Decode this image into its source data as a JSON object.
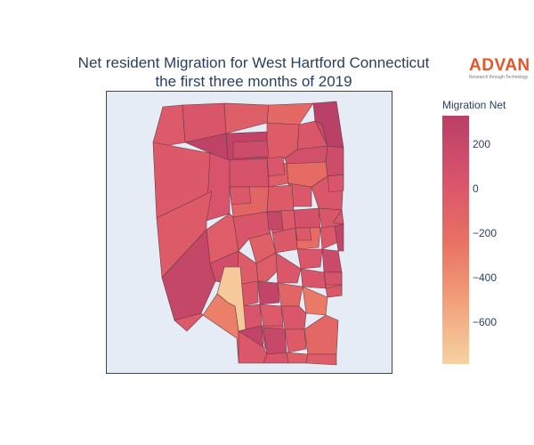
{
  "chart": {
    "title_line1": "Net resident Migration for West Hartford Connecticut",
    "title_line2": "the first three months of 2019"
  },
  "logo": {
    "name": "ADVAN",
    "tagline": "Research through Technology",
    "color": "#e8542a"
  },
  "colorbar": {
    "title": "Migration Net",
    "min": -790,
    "max": 330,
    "ticks": [
      {
        "value": 200,
        "label": "200"
      },
      {
        "value": 0,
        "label": "0"
      },
      {
        "value": -200,
        "label": "−200"
      },
      {
        "value": -400,
        "label": "−400"
      },
      {
        "value": -600,
        "label": "−600"
      }
    ],
    "colors": [
      "#f6d2a0",
      "#f2a07a",
      "#e87063",
      "#d8536b",
      "#b83f66"
    ]
  },
  "chart_data": {
    "type": "choropleth",
    "region": "West Hartford Connecticut",
    "value_label": "Migration Net",
    "range": [
      -790,
      330
    ],
    "tracts": [
      {
        "id": "t01",
        "value": -20
      },
      {
        "id": "t02",
        "value": 30
      },
      {
        "id": "t03",
        "value": -60
      },
      {
        "id": "t04",
        "value": -160
      },
      {
        "id": "t05",
        "value": 320
      },
      {
        "id": "t06",
        "value": 10
      },
      {
        "id": "t07",
        "value": 260
      },
      {
        "id": "t08",
        "value": -40
      },
      {
        "id": "t09",
        "value": 90
      },
      {
        "id": "t10",
        "value": 150
      },
      {
        "id": "t11",
        "value": 280
      },
      {
        "id": "t12",
        "value": -10
      },
      {
        "id": "t13",
        "value": 40
      },
      {
        "id": "t14",
        "value": -180
      },
      {
        "id": "t15",
        "value": 60
      },
      {
        "id": "t16",
        "value": -70
      },
      {
        "id": "t17",
        "value": 0
      },
      {
        "id": "t18",
        "value": 20
      },
      {
        "id": "t19",
        "value": -120
      },
      {
        "id": "t20",
        "value": -30
      },
      {
        "id": "t21",
        "value": 80
      },
      {
        "id": "t22",
        "value": 10
      },
      {
        "id": "t23",
        "value": 50
      },
      {
        "id": "t24",
        "value": -30
      },
      {
        "id": "t25",
        "value": -50
      },
      {
        "id": "t26",
        "value": 30
      },
      {
        "id": "t27",
        "value": -20
      },
      {
        "id": "t28",
        "value": -190
      },
      {
        "id": "t29",
        "value": 0
      },
      {
        "id": "t30",
        "value": 250
      },
      {
        "id": "t31",
        "value": -10
      },
      {
        "id": "t32",
        "value": -80
      },
      {
        "id": "t33",
        "value": 20
      },
      {
        "id": "t34",
        "value": 180
      },
      {
        "id": "t35",
        "value": -40
      },
      {
        "id": "t36",
        "value": -60
      },
      {
        "id": "t37",
        "value": 10
      },
      {
        "id": "t38",
        "value": 30
      },
      {
        "id": "t39",
        "value": -90
      },
      {
        "id": "t40",
        "value": 120
      },
      {
        "id": "t41",
        "value": 220
      },
      {
        "id": "t42",
        "value": 10
      },
      {
        "id": "t43",
        "value": 240
      },
      {
        "id": "t44",
        "value": -120
      },
      {
        "id": "t45",
        "value": -280
      },
      {
        "id": "t46",
        "value": 40
      },
      {
        "id": "t47",
        "value": -20
      },
      {
        "id": "t48",
        "value": 20
      },
      {
        "id": "t49",
        "value": 260
      },
      {
        "id": "t50",
        "value": 10
      },
      {
        "id": "t51",
        "value": 200
      },
      {
        "id": "t52",
        "value": -30
      },
      {
        "id": "t53",
        "value": -150
      },
      {
        "id": "t54",
        "value": -740
      },
      {
        "id": "t55",
        "value": -320
      },
      {
        "id": "t56",
        "value": 0
      },
      {
        "id": "t57",
        "value": 40
      },
      {
        "id": "t58",
        "value": -60
      },
      {
        "id": "t59",
        "value": -50
      },
      {
        "id": "t60",
        "value": 150
      },
      {
        "id": "t61",
        "value": -10
      },
      {
        "id": "t62",
        "value": 20
      },
      {
        "id": "t63",
        "value": 170
      },
      {
        "id": "t64",
        "value": 30
      },
      {
        "id": "t65",
        "value": -20
      },
      {
        "id": "t66",
        "value": 60
      },
      {
        "id": "t67",
        "value": 0
      },
      {
        "id": "t68",
        "value": 210
      },
      {
        "id": "t69",
        "value": 30
      },
      {
        "id": "t70",
        "value": 10
      }
    ]
  }
}
